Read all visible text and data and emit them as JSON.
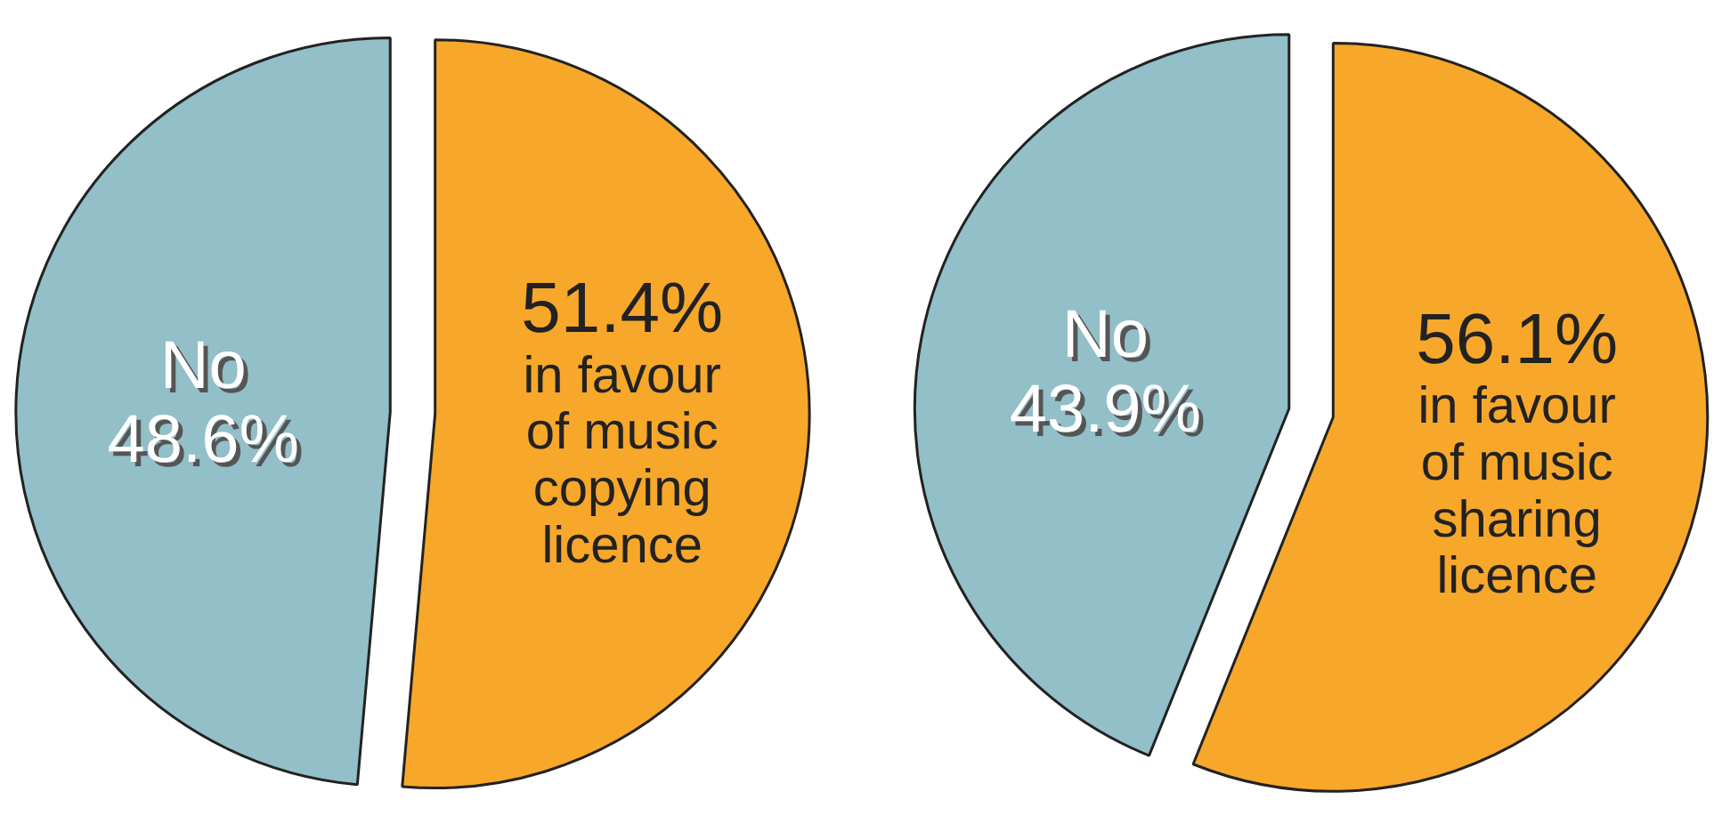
{
  "chart_data": [
    {
      "type": "pie",
      "categories": [
        "No",
        "in favour of music copying licence"
      ],
      "values": [
        48.6,
        51.4
      ],
      "colors": [
        "#92bfc8",
        "#f7a72a"
      ],
      "value_labels": [
        "48.6%",
        "51.4%"
      ]
    },
    {
      "type": "pie",
      "categories": [
        "No",
        "in favour of music sharing licence"
      ],
      "values": [
        43.9,
        56.1
      ],
      "colors": [
        "#92bfc8",
        "#f7a72a"
      ],
      "value_labels": [
        "43.9%",
        "56.1%"
      ]
    }
  ]
}
